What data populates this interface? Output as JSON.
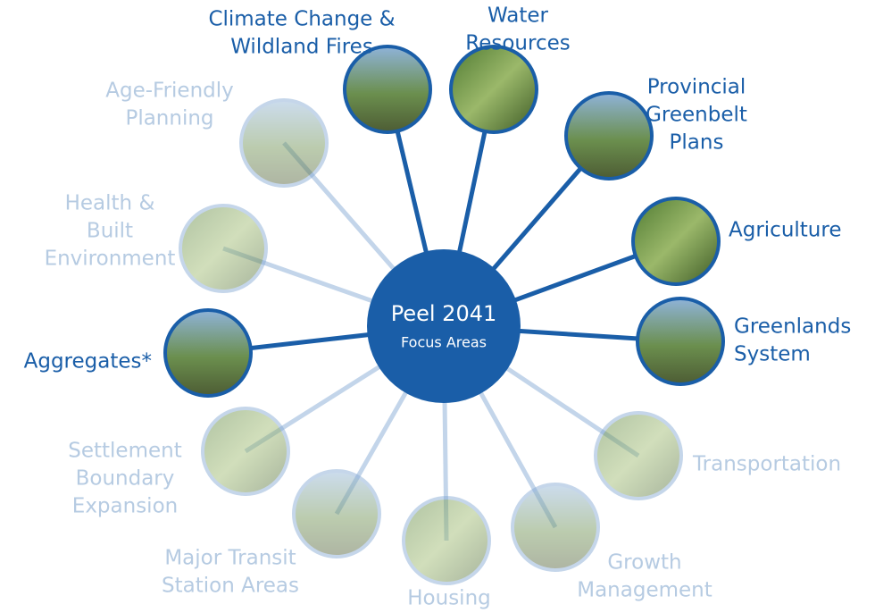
{
  "center": {
    "title": "Peel 2041",
    "subtitle": "Focus Areas"
  },
  "nodes": [
    {
      "label": [
        "Climate Change &",
        "Wildland Fires"
      ]
    },
    {
      "label": [
        "Water",
        "Resources"
      ]
    },
    {
      "label": [
        "Provincial",
        "Greenbelt",
        "Plans"
      ]
    },
    {
      "label": [
        "Agriculture"
      ]
    },
    {
      "label": [
        "Greenlands",
        "System"
      ]
    },
    {
      "label": [
        "Transportation"
      ]
    },
    {
      "label": [
        "Growth",
        "Management"
      ]
    },
    {
      "label": [
        "Housing"
      ]
    },
    {
      "label": [
        "Major Transit",
        "Station Areas"
      ]
    },
    {
      "label": [
        "Settlement",
        "Boundary",
        "Expansion"
      ]
    },
    {
      "label": [
        "Aggregates*"
      ]
    },
    {
      "label": [
        "Health &",
        "Built",
        "Environment"
      ]
    },
    {
      "label": [
        "Age-Friendly",
        "Planning"
      ]
    }
  ]
}
